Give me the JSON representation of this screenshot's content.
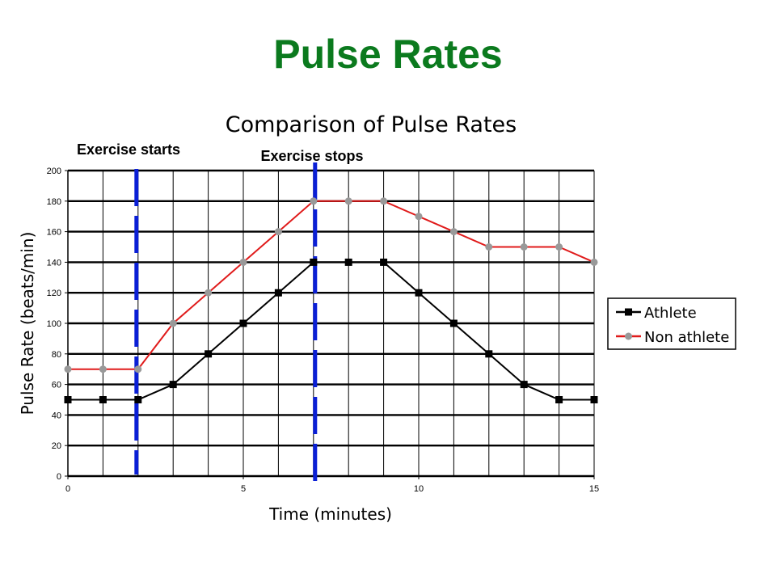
{
  "slide": {
    "title": "Pulse Rates",
    "title_color": "#0b7a1e"
  },
  "chart_data": {
    "type": "line",
    "title": "Comparison of Pulse Rates",
    "xlabel": "Time (minutes)",
    "ylabel": "Pulse Rate (beats/min)",
    "xlim": [
      0,
      15
    ],
    "ylim": [
      0,
      200
    ],
    "x_ticks": [
      0,
      5,
      10,
      15
    ],
    "y_ticks": [
      0,
      20,
      40,
      60,
      80,
      100,
      120,
      140,
      160,
      180,
      200
    ],
    "grid": true,
    "legend": {
      "position": "right"
    },
    "series": [
      {
        "name": "Athlete",
        "color": "#000000",
        "marker": "square",
        "x": [
          0,
          1,
          2,
          3,
          4,
          5,
          6,
          7,
          8,
          9,
          10,
          11,
          12,
          13,
          14,
          15
        ],
        "values": [
          50,
          50,
          50,
          60,
          80,
          100,
          120,
          140,
          140,
          140,
          120,
          100,
          80,
          60,
          50,
          50
        ]
      },
      {
        "name": "Non athlete",
        "color": "#e01b1b",
        "marker_color": "#999999",
        "marker": "circle",
        "x": [
          0,
          1,
          2,
          3,
          4,
          5,
          6,
          7,
          8,
          9,
          10,
          11,
          12,
          13,
          14,
          15
        ],
        "values": [
          70,
          70,
          70,
          100,
          120,
          140,
          160,
          180,
          180,
          180,
          170,
          160,
          150,
          150,
          150,
          140
        ]
      }
    ],
    "annotations": [
      {
        "text": "Exercise starts",
        "x": 2,
        "line_color": "#0a1fd6"
      },
      {
        "text": "Exercise stops",
        "x": 7,
        "line_color": "#0a1fd6"
      }
    ]
  }
}
